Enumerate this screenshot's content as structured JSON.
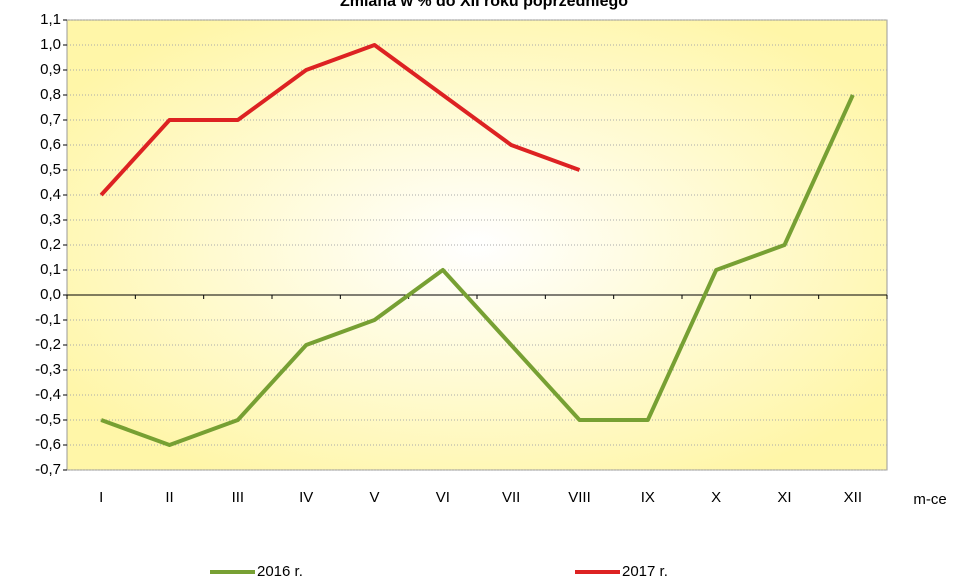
{
  "chart_data": {
    "type": "line",
    "title": "Zmiana w % do XII roku poprzedniego",
    "x_label": "m-ce",
    "categories": [
      "I",
      "II",
      "III",
      "IV",
      "V",
      "VI",
      "VII",
      "VIII",
      "IX",
      "X",
      "XI",
      "XII"
    ],
    "series": [
      {
        "name": "2016 r.",
        "color": "#77a033",
        "values": [
          -0.5,
          -0.6,
          -0.5,
          -0.2,
          -0.1,
          0.1,
          -0.2,
          -0.5,
          -0.5,
          0.1,
          0.2,
          0.8
        ]
      },
      {
        "name": "2017 r.",
        "color": "#dd2222",
        "values": [
          0.4,
          0.7,
          0.7,
          0.9,
          1.0,
          0.8,
          0.6,
          0.5,
          null,
          null,
          null,
          null
        ]
      }
    ],
    "ylim": [
      -0.7,
      1.1
    ],
    "yticks": [
      {
        "value": -0.7,
        "label": "-0,7"
      },
      {
        "value": -0.6,
        "label": "-0,6"
      },
      {
        "value": -0.5,
        "label": "-0,5"
      },
      {
        "value": -0.4,
        "label": "-0,4"
      },
      {
        "value": -0.3,
        "label": "-0,3"
      },
      {
        "value": -0.2,
        "label": "-0,2"
      },
      {
        "value": -0.1,
        "label": "-0,1"
      },
      {
        "value": 0,
        "label": "0,0"
      },
      {
        "value": 0.1,
        "label": "0,1"
      },
      {
        "value": 0.2,
        "label": "0,2"
      },
      {
        "value": 0.3,
        "label": "0,3"
      },
      {
        "value": 0.4,
        "label": "0,4"
      },
      {
        "value": 0.5,
        "label": "0,5"
      },
      {
        "value": 0.6,
        "label": "0,6"
      },
      {
        "value": 0.7,
        "label": "0,7"
      },
      {
        "value": 0.8,
        "label": "0,8"
      },
      {
        "value": 0.9,
        "label": "0,9"
      },
      {
        "value": 1.0,
        "label": "1,0"
      },
      {
        "value": 1.1,
        "label": "1,1"
      }
    ],
    "grid": true,
    "legend": "bottom"
  }
}
